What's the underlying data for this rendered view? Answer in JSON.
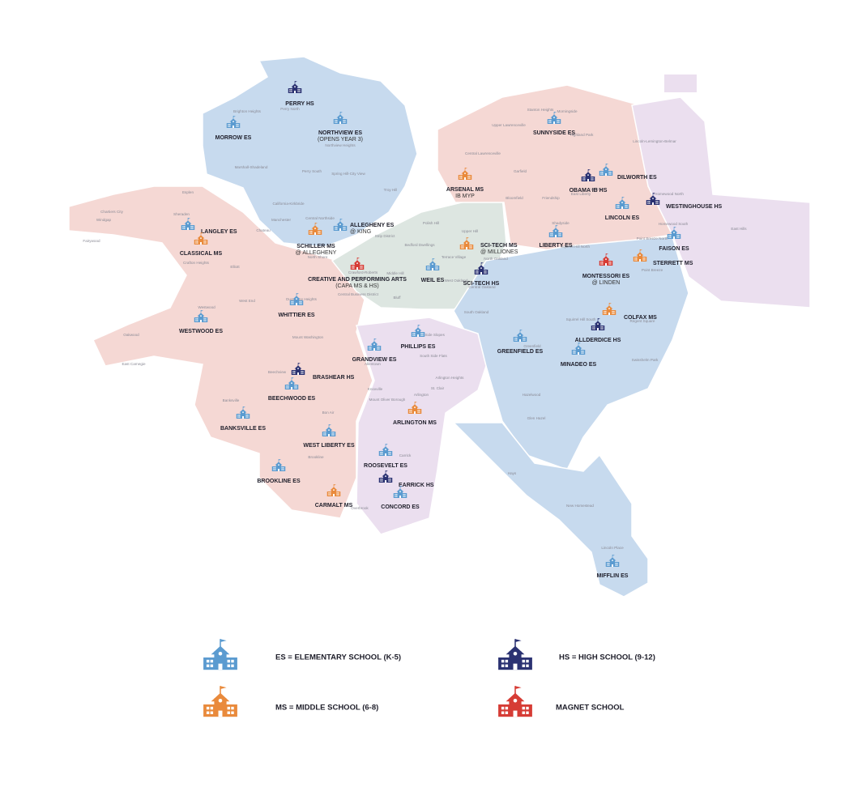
{
  "schools": [
    {
      "name": "PERRY HS",
      "color": "#2b3272"
    },
    {
      "name": "MORROW ES",
      "color": "#5b9bd0"
    },
    {
      "name": "NORTHVIEW ES",
      "note": "(OPENS YEAR 3)",
      "color": "#5b9bd0"
    },
    {
      "name": "ALLEGHENY ES",
      "note": "@ KING",
      "color": "#5b9bd0"
    },
    {
      "name": "SCHILLER MS",
      "note": "@ ALLEGHENY",
      "color": "#e98a3c"
    },
    {
      "name": "LANGLEY ES",
      "color": "#5b9bd0"
    },
    {
      "name": "CLASSICAL MS",
      "color": "#e98a3c"
    },
    {
      "name": "CREATIVE AND PERFORMING ARTS",
      "note": "(CAPA MS & HS)",
      "color": "#d63c35"
    },
    {
      "name": "ARSENAL MS",
      "note": "IB MYP",
      "color": "#e98a3c"
    },
    {
      "name": "SCI-TECH MS",
      "note": "@ MILLIONES",
      "color": "#e98a3c"
    },
    {
      "name": "SCI-TECH HS",
      "color": "#2b3272"
    },
    {
      "name": "WEIL ES",
      "color": "#5b9bd0"
    },
    {
      "name": "SUNNYSIDE ES",
      "color": "#5b9bd0"
    },
    {
      "name": "OBAMA IB HS",
      "color": "#2b3272"
    },
    {
      "name": "DILWORTH ES",
      "color": "#5b9bd0"
    },
    {
      "name": "WESTINGHOUSE HS",
      "color": "#2b3272"
    },
    {
      "name": "LINCOLN ES",
      "color": "#5b9bd0"
    },
    {
      "name": "LIBERTY ES",
      "color": "#5b9bd0"
    },
    {
      "name": "FAISON ES",
      "color": "#5b9bd0"
    },
    {
      "name": "STERRETT MS",
      "color": "#e98a3c"
    },
    {
      "name": "MONTESSORI ES",
      "note": "@ LINDEN",
      "color": "#d63c35"
    },
    {
      "name": "COLFAX MS",
      "color": "#e98a3c"
    },
    {
      "name": "ALLDERDICE HS",
      "color": "#2b3272"
    },
    {
      "name": "GREENFIELD ES",
      "color": "#5b9bd0"
    },
    {
      "name": "MINADEO ES",
      "color": "#5b9bd0"
    },
    {
      "name": "WHITTIER ES",
      "color": "#5b9bd0"
    },
    {
      "name": "WESTWOOD ES",
      "color": "#5b9bd0"
    },
    {
      "name": "PHILLIPS ES",
      "color": "#5b9bd0"
    },
    {
      "name": "GRANDVIEW ES",
      "color": "#5b9bd0"
    },
    {
      "name": "BRASHEAR HS",
      "color": "#2b3272"
    },
    {
      "name": "BEECHWOOD ES",
      "color": "#5b9bd0"
    },
    {
      "name": "ARLINGTON MS",
      "color": "#e98a3c"
    },
    {
      "name": "BANKSVILLE ES",
      "color": "#5b9bd0"
    },
    {
      "name": "WEST LIBERTY ES",
      "color": "#5b9bd0"
    },
    {
      "name": "ROOSEVELT ES",
      "color": "#5b9bd0"
    },
    {
      "name": "BROOKLINE ES",
      "color": "#5b9bd0"
    },
    {
      "name": "EARRICK HS",
      "color": "#2b3272"
    },
    {
      "name": "CONCORD ES",
      "color": "#5b9bd0"
    },
    {
      "name": "CARMALT MS",
      "color": "#e98a3c"
    },
    {
      "name": "MIFFLIN ES",
      "color": "#5b9bd0"
    }
  ],
  "neighborhoods": [
    "Brighton Heights",
    "Perry North",
    "Northview Heights",
    "Marshall-Shadeland",
    "Perry South",
    "Spring Hill-City View",
    "California-Kirkbride",
    "Troy Hill",
    "Manchester",
    "Central Northside",
    "Chateau",
    "North Shore",
    "Esplen",
    "Chartiers City",
    "Windgap",
    "Fairywood",
    "Sheraden",
    "Crafton Heights",
    "Elliott",
    "West End",
    "Westwood",
    "Oakwood",
    "East Carnegie",
    "Duquesne Heights",
    "Mount Washington",
    "Beechview",
    "Banksville",
    "Bon Air",
    "Brookline",
    "Overbrook",
    "Carrick",
    "Knoxville",
    "Mount Oliver Borough",
    "St. Clair",
    "Arlington",
    "Arlington Heights",
    "Allentown",
    "South Side Slopes",
    "South Side Flats",
    "Bluff",
    "Central Business District",
    "Strip District",
    "Polish Hill",
    "Bedford Dwellings",
    "Crawford-Roberts",
    "Middle Hill",
    "Upper Hill",
    "Terrace Village",
    "West Oakland",
    "North Oakland",
    "Central Oakland",
    "South Oakland",
    "Upper Lawrenceville",
    "Central Lawrenceville",
    "Stanton Heights",
    "Morningside",
    "Highland Park",
    "Lincoln-Lemington-Belmar",
    "Garfield",
    "Bloomfield",
    "Friendship",
    "East Liberty",
    "Larimer",
    "Homewood North",
    "Homewood South",
    "East Hills",
    "Point Breeze North",
    "Point Breeze",
    "Shadyside",
    "Squirrel Hill North",
    "Squirrel Hill South",
    "Greenfield",
    "Swisshelm Park",
    "Regent Square",
    "Hazelwood",
    "Glen Hazel",
    "Hays",
    "New Homestead",
    "Lincoln Place"
  ],
  "legend": [
    {
      "label": "ES = ELEMENTARY SCHOOL (K-5)",
      "color": "#5b9bd0"
    },
    {
      "label": "HS = HIGH SCHOOL (9-12)",
      "color": "#2b3272"
    },
    {
      "label": "MS = MIDDLE SCHOOL (6-8)",
      "color": "#e98a3c"
    },
    {
      "label": "MAGNET SCHOOL",
      "color": "#d63c35"
    }
  ]
}
